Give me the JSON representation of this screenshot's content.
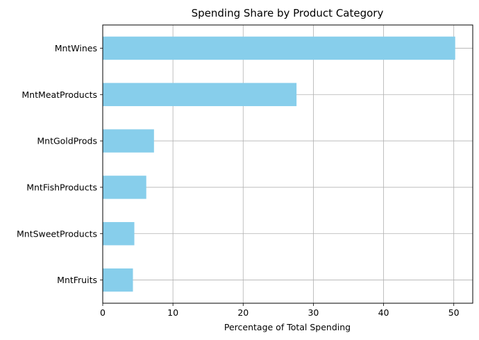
{
  "chart_data": {
    "type": "bar",
    "orientation": "horizontal",
    "title": "Spending Share by Product Category",
    "xlabel": "Percentage of Total Spending",
    "ylabel": "",
    "categories": [
      "MntWines",
      "MntMeatProducts",
      "MntGoldProds",
      "MntFishProducts",
      "MntSweetProducts",
      "MntFruits"
    ],
    "values": [
      50.2,
      27.6,
      7.3,
      6.2,
      4.5,
      4.3
    ],
    "xlim": [
      0,
      52.7
    ],
    "xticks": [
      0,
      10,
      20,
      30,
      40,
      50
    ],
    "grid": true,
    "bar_color": "#87ceeb"
  }
}
